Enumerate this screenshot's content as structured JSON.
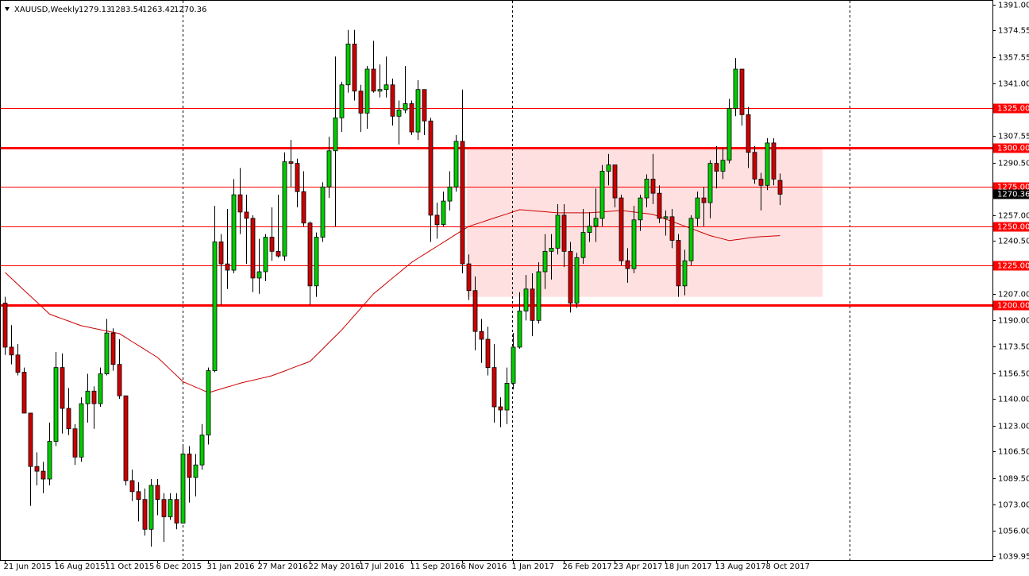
{
  "chart_data": {
    "type": "candlestick",
    "title": "XAUUSD,Weekly",
    "categories": [
      "21 Jun 2015",
      null,
      null,
      null,
      null,
      null,
      null,
      null,
      "16 Aug 2015",
      null,
      null,
      null,
      null,
      null,
      null,
      null,
      "11 Oct 2015",
      null,
      null,
      null,
      null,
      null,
      null,
      null,
      "6 Dec 2015",
      null,
      null,
      null,
      null,
      null,
      null,
      null,
      "31 Jan 2016",
      null,
      null,
      null,
      null,
      null,
      null,
      null,
      "27 Mar 2016",
      null,
      null,
      null,
      null,
      null,
      null,
      null,
      "22 May 2016",
      null,
      null,
      null,
      null,
      null,
      null,
      null,
      "17 Jul 2016",
      null,
      null,
      null,
      null,
      null,
      null,
      null,
      "11 Sep 2016",
      null,
      null,
      null,
      null,
      null,
      null,
      null,
      "6 Nov 2016",
      null,
      null,
      null,
      null,
      null,
      null,
      null,
      "1 Jan 2017",
      null,
      null,
      null,
      null,
      null,
      null,
      null,
      "26 Feb 2017",
      null,
      null,
      null,
      null,
      null,
      null,
      null,
      "23 Apr 2017",
      null,
      null,
      null,
      null,
      null,
      null,
      null,
      "18 Jun 2017",
      null,
      null,
      null,
      null,
      null,
      null,
      null,
      "13 Aug 2017",
      null,
      null,
      null,
      null,
      null,
      null,
      null,
      "8 Oct 2017",
      null,
      null
    ],
    "ohlc": [
      [
        1201,
        1205,
        1168,
        1173
      ],
      [
        1173,
        1187,
        1162,
        1168
      ],
      [
        1168,
        1175,
        1155,
        1157
      ],
      [
        1157,
        1160,
        1131,
        1131
      ],
      [
        1131,
        1131,
        1072,
        1097
      ],
      [
        1097,
        1106,
        1085,
        1094
      ],
      [
        1094,
        1100,
        1080,
        1089
      ],
      [
        1089,
        1125,
        1085,
        1113
      ],
      [
        1113,
        1170,
        1110,
        1160
      ],
      [
        1160,
        1169,
        1118,
        1134
      ],
      [
        1134,
        1147,
        1117,
        1121
      ],
      [
        1121,
        1124,
        1098,
        1103
      ],
      [
        1103,
        1141,
        1100,
        1137
      ],
      [
        1137,
        1156,
        1125,
        1145
      ],
      [
        1145,
        1148,
        1121,
        1137
      ],
      [
        1137,
        1160,
        1135,
        1156
      ],
      [
        1156,
        1191,
        1155,
        1182
      ],
      [
        1182,
        1185,
        1158,
        1162
      ],
      [
        1162,
        1178,
        1140,
        1142
      ],
      [
        1142,
        1142,
        1085,
        1088
      ],
      [
        1088,
        1095,
        1075,
        1081
      ],
      [
        1081,
        1087,
        1062,
        1076
      ],
      [
        1076,
        1083,
        1053,
        1057
      ],
      [
        1057,
        1089,
        1046,
        1085
      ],
      [
        1085,
        1089,
        1066,
        1076
      ],
      [
        1076,
        1080,
        1049,
        1065
      ],
      [
        1065,
        1080,
        1063,
        1076
      ],
      [
        1076,
        1080,
        1057,
        1061
      ],
      [
        1061,
        1111,
        1061,
        1105
      ],
      [
        1105,
        1110,
        1074,
        1090
      ],
      [
        1090,
        1105,
        1078,
        1098
      ],
      [
        1098,
        1124,
        1095,
        1117
      ],
      [
        1117,
        1160,
        1111,
        1158
      ],
      [
        1158,
        1263,
        1157,
        1240
      ],
      [
        1240,
        1245,
        1200,
        1226
      ],
      [
        1226,
        1261,
        1210,
        1222
      ],
      [
        1222,
        1280,
        1220,
        1270
      ],
      [
        1270,
        1287,
        1245,
        1259
      ],
      [
        1259,
        1270,
        1226,
        1255
      ],
      [
        1255,
        1257,
        1208,
        1217
      ],
      [
        1217,
        1242,
        1207,
        1221
      ],
      [
        1221,
        1245,
        1215,
        1243
      ],
      [
        1243,
        1262,
        1228,
        1234
      ],
      [
        1234,
        1270,
        1230,
        1231
      ],
      [
        1231,
        1297,
        1228,
        1291
      ],
      [
        1291,
        1305,
        1275,
        1290
      ],
      [
        1290,
        1293,
        1262,
        1272
      ],
      [
        1272,
        1285,
        1250,
        1252
      ],
      [
        1252,
        1253,
        1200,
        1212
      ],
      [
        1212,
        1246,
        1205,
        1243
      ],
      [
        1243,
        1278,
        1240,
        1275
      ],
      [
        1275,
        1307,
        1268,
        1298
      ],
      [
        1298,
        1358,
        1250,
        1319
      ],
      [
        1319,
        1342,
        1310,
        1340
      ],
      [
        1340,
        1375,
        1335,
        1366
      ],
      [
        1366,
        1375,
        1330,
        1336
      ],
      [
        1336,
        1340,
        1310,
        1322
      ],
      [
        1322,
        1352,
        1312,
        1350
      ],
      [
        1350,
        1368,
        1335,
        1336
      ],
      [
        1336,
        1353,
        1332,
        1337
      ],
      [
        1337,
        1358,
        1332,
        1340
      ],
      [
        1340,
        1344,
        1314,
        1320
      ],
      [
        1320,
        1330,
        1302,
        1324
      ],
      [
        1324,
        1352,
        1322,
        1328
      ],
      [
        1328,
        1330,
        1308,
        1310
      ],
      [
        1310,
        1343,
        1305,
        1337
      ],
      [
        1337,
        1337,
        1308,
        1317
      ],
      [
        1317,
        1319,
        1240,
        1257
      ],
      [
        1257,
        1265,
        1242,
        1251
      ],
      [
        1251,
        1272,
        1250,
        1266
      ],
      [
        1266,
        1285,
        1260,
        1275
      ],
      [
        1275,
        1308,
        1272,
        1304
      ],
      [
        1304,
        1337,
        1220,
        1226
      ],
      [
        1226,
        1232,
        1203,
        1209
      ],
      [
        1209,
        1218,
        1171,
        1183
      ],
      [
        1183,
        1191,
        1163,
        1178
      ],
      [
        1178,
        1186,
        1155,
        1160
      ],
      [
        1160,
        1175,
        1125,
        1135
      ],
      [
        1135,
        1141,
        1122,
        1133
      ],
      [
        1133,
        1160,
        1124,
        1150
      ],
      [
        1150,
        1182,
        1146,
        1173
      ],
      [
        1173,
        1208,
        1172,
        1196
      ],
      [
        1196,
        1219,
        1190,
        1210
      ],
      [
        1210,
        1220,
        1180,
        1190
      ],
      [
        1190,
        1227,
        1188,
        1221
      ],
      [
        1221,
        1245,
        1210,
        1234
      ],
      [
        1234,
        1245,
        1216,
        1236
      ],
      [
        1236,
        1264,
        1232,
        1257
      ],
      [
        1257,
        1264,
        1224,
        1234
      ],
      [
        1234,
        1240,
        1195,
        1201
      ],
      [
        1201,
        1233,
        1198,
        1230
      ],
      [
        1230,
        1261,
        1226,
        1246
      ],
      [
        1246,
        1259,
        1240,
        1250
      ],
      [
        1250,
        1274,
        1240,
        1255
      ],
      [
        1255,
        1289,
        1250,
        1285
      ],
      [
        1285,
        1296,
        1276,
        1289
      ],
      [
        1289,
        1289,
        1262,
        1268
      ],
      [
        1268,
        1270,
        1225,
        1228
      ],
      [
        1228,
        1236,
        1214,
        1223
      ],
      [
        1223,
        1263,
        1220,
        1254
      ],
      [
        1254,
        1270,
        1247,
        1268
      ],
      [
        1268,
        1283,
        1262,
        1280
      ],
      [
        1280,
        1296,
        1264,
        1271
      ],
      [
        1271,
        1276,
        1252,
        1255
      ],
      [
        1255,
        1260,
        1244,
        1256
      ],
      [
        1256,
        1261,
        1236,
        1241
      ],
      [
        1241,
        1245,
        1205,
        1212
      ],
      [
        1212,
        1235,
        1206,
        1228
      ],
      [
        1228,
        1257,
        1225,
        1255
      ],
      [
        1255,
        1272,
        1250,
        1268
      ],
      [
        1268,
        1275,
        1250,
        1265
      ],
      [
        1265,
        1292,
        1255,
        1290
      ],
      [
        1290,
        1301,
        1274,
        1285
      ],
      [
        1285,
        1300,
        1280,
        1292
      ],
      [
        1292,
        1331,
        1290,
        1325
      ],
      [
        1325,
        1357,
        1320,
        1350
      ],
      [
        1350,
        1350,
        1314,
        1321
      ],
      [
        1321,
        1326,
        1287,
        1297
      ],
      [
        1297,
        1301,
        1277,
        1280
      ],
      [
        1280,
        1284,
        1260,
        1276
      ],
      [
        1276,
        1306,
        1273,
        1303
      ],
      [
        1303,
        1306,
        1276,
        1280
      ],
      [
        1279.13,
        1283.54,
        1263.42,
        1270.36
      ]
    ],
    "up_color": "#00cc00",
    "down_color": "#cc0000",
    "moving_average": [
      1220.5,
      1216.7,
      1212.9,
      1209.1,
      1205.4,
      1201.6,
      1197.8,
      1194.0,
      1192.5,
      1191.0,
      1189.6,
      1188.1,
      1186.6,
      1185.8,
      1184.9,
      1184.1,
      1183.3,
      1182.4,
      1181.6,
      1179.1,
      1176.5,
      1174.0,
      1171.5,
      1168.9,
      1166.4,
      1162.6,
      1158.7,
      1154.9,
      1151.0,
      1149.3,
      1147.5,
      1145.8,
      1144.0,
      1145.2,
      1146.4,
      1147.6,
      1148.8,
      1150.0,
      1151.0,
      1151.9,
      1152.9,
      1153.8,
      1154.8,
      1156.3,
      1157.8,
      1159.4,
      1160.9,
      1162.4,
      1163.9,
      1167.9,
      1171.9,
      1176.0,
      1180.0,
      1184.0,
      1188.6,
      1193.2,
      1197.8,
      1202.4,
      1207.0,
      1210.3,
      1213.7,
      1217.0,
      1220.3,
      1223.7,
      1227.0,
      1229.6,
      1232.1,
      1234.7,
      1237.2,
      1239.8,
      1242.3,
      1244.9,
      1247.4,
      1249.9,
      1251.2,
      1252.5,
      1253.9,
      1255.2,
      1256.5,
      1257.8,
      1259.2,
      1260.5,
      1260.2,
      1259.8,
      1259.5,
      1259.2,
      1258.8,
      1258.5,
      1258.5,
      1258.5,
      1258.5,
      1258.5,
      1258.5,
      1258.8,
      1259.1,
      1259.4,
      1259.7,
      1260.0,
      1259.5,
      1259.0,
      1258.5,
      1258.0,
      1257.5,
      1256.0,
      1254.5,
      1253.0,
      1251.5,
      1250.0,
      1248.5,
      1247.0,
      1245.5,
      1244.0,
      1242.9,
      1241.9,
      1240.8,
      1241.4,
      1241.9,
      1242.5,
      1243.0,
      1243.3,
      1243.5,
      1243.8,
      1244.0
    ],
    "moving_average_color": "#cc0000",
    "levels": [
      {
        "value": 1325,
        "label": "1325.00",
        "bold": false
      },
      {
        "value": 1300,
        "label": "1300.00",
        "bold": true
      },
      {
        "value": 1275,
        "label": "1275.00",
        "bold": false
      },
      {
        "value": 1250,
        "label": "1250.00",
        "bold": false
      },
      {
        "value": 1225,
        "label": "1225.00",
        "bold": false
      },
      {
        "value": 1200,
        "label": "1200.00",
        "bold": true
      }
    ],
    "level_color": "#ff0000",
    "zone_range": [
      1205,
      1300
    ],
    "zone_color": "#ffe0e0",
    "ylim": [
      1037.4,
      1393.5
    ],
    "yticks": [
      {
        "value": 1391,
        "label": "1391.00"
      },
      {
        "value": 1374.55,
        "label": "1374.55"
      },
      {
        "value": 1357.55,
        "label": "1357.55"
      },
      {
        "value": 1341,
        "label": "1341.00"
      },
      {
        "value": 1307.55,
        "label": "1307.55"
      },
      {
        "value": 1290.5,
        "label": "1290.50"
      },
      {
        "value": 1257,
        "label": "1257.00"
      },
      {
        "value": 1240.5,
        "label": "1240.50"
      },
      {
        "value": 1207,
        "label": "1207.00"
      },
      {
        "value": 1190,
        "label": "1190.00"
      },
      {
        "value": 1173.5,
        "label": "1173.50"
      },
      {
        "value": 1156.5,
        "label": "1156.50"
      },
      {
        "value": 1140,
        "label": "1140.00"
      },
      {
        "value": 1123,
        "label": "1123.00"
      },
      {
        "value": 1106.5,
        "label": "1106.50"
      },
      {
        "value": 1089.5,
        "label": "1089.50"
      },
      {
        "value": 1073,
        "label": "1073.00"
      },
      {
        "value": 1056,
        "label": "1056.00"
      },
      {
        "value": 1039.95,
        "label": "1039.95"
      }
    ],
    "grid": false
  }
}
